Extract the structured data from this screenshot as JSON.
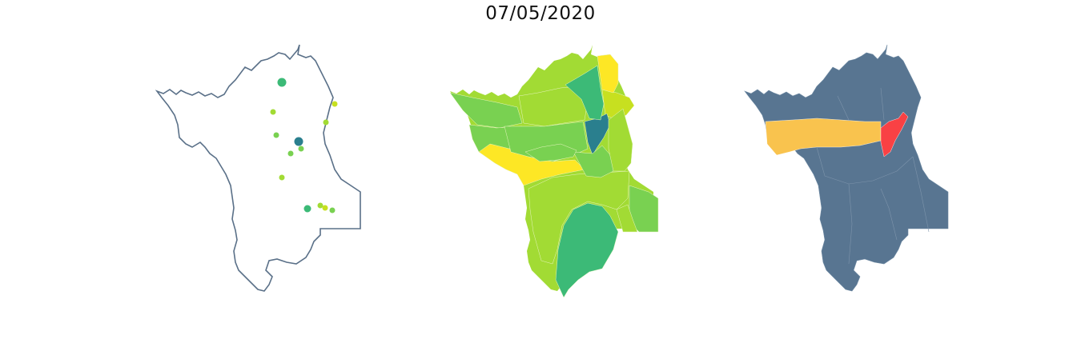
{
  "title": "07/05/2020",
  "colors": {
    "outline": "#5a7088",
    "dark_teal": "#2a7f8e",
    "green": "#3cba77",
    "mid_green": "#79d151",
    "light_green": "#a2db34",
    "lime": "#c7e020",
    "yellow": "#fde725",
    "slate": "#587591",
    "orange": "#f9c34e",
    "red": "#f94144"
  },
  "points": [
    {
      "color": "green",
      "size": "large"
    },
    {
      "color": "lime",
      "size": "small"
    },
    {
      "color": "light_green",
      "size": "small"
    },
    {
      "color": "light_green",
      "size": "small"
    },
    {
      "color": "mid_green",
      "size": "small"
    },
    {
      "color": "dark_teal",
      "size": "large"
    },
    {
      "color": "mid_green",
      "size": "small"
    },
    {
      "color": "mid_green",
      "size": "small"
    },
    {
      "color": "light_green",
      "size": "small"
    },
    {
      "color": "green",
      "size": "medium"
    },
    {
      "color": "light_green",
      "size": "small"
    },
    {
      "color": "lime",
      "size": "small"
    },
    {
      "color": "mid_green",
      "size": "small"
    }
  ],
  "choropleth_fill": [
    "green",
    "light_green",
    "mid_green",
    "mid_green",
    "yellow",
    "lime",
    "dark_teal",
    "light_green",
    "mid_green",
    "yellow",
    "mid_green",
    "light_green",
    "mid_green",
    "green",
    "mid_green",
    "light_green"
  ],
  "category_fill": [
    "slate",
    "orange",
    "red"
  ]
}
